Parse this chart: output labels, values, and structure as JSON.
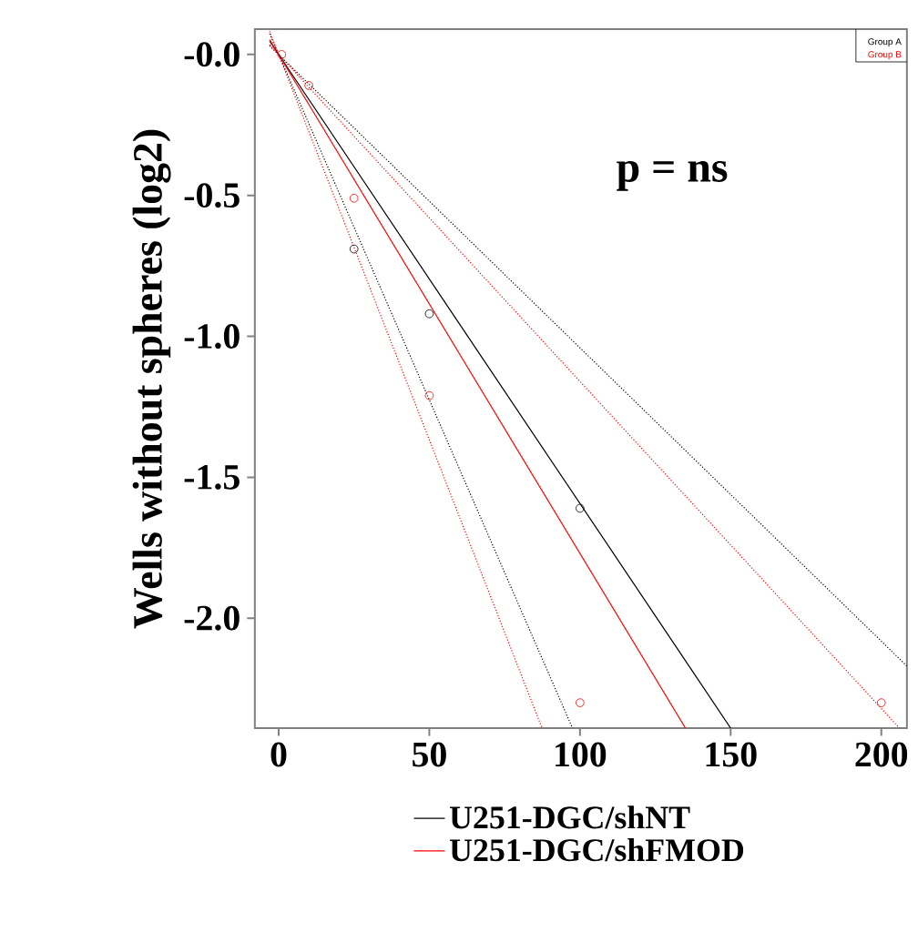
{
  "chart_data": {
    "type": "line",
    "ylabel": "Wells without spheres (log2)",
    "xlim": [
      -7.9,
      208.5
    ],
    "ylim": [
      -2.39,
      0.09
    ],
    "xticks": [
      0,
      50,
      100,
      150,
      200
    ],
    "yticks": [
      {
        "value": 0,
        "label": "-0.0"
      },
      -0.5,
      {
        "value": -1.0,
        "label": "-1.0"
      },
      -1.5,
      {
        "value": -2.0,
        "label": "-2.0"
      }
    ],
    "grid": false,
    "legend": "bottom",
    "annotations": [
      "p = ns",
      "Group A",
      "Group B"
    ],
    "series": [
      {
        "type": "scatter",
        "marker": "circle",
        "color": "#000000",
        "x": [
          25,
          50,
          100
        ],
        "values": [
          -0.69,
          -0.92,
          -1.61
        ]
      },
      {
        "type": "scatter",
        "marker": "circle",
        "color": "#ff0000",
        "x": [
          1,
          10,
          25,
          50,
          100,
          200
        ],
        "values": [
          0.0,
          -0.11,
          -0.51,
          -1.21,
          -2.3,
          -2.3
        ]
      },
      {
        "name": "U251-DGC/shNT",
        "color": "#000000",
        "marker": "none",
        "line_style": "solid",
        "x": [
          -3,
          150
        ],
        "values": [
          0.048,
          -2.39
        ]
      },
      {
        "name": "U251-DGC/shFMOD",
        "color": "#ff0000",
        "marker": "none",
        "line_style": "solid",
        "x": [
          -3,
          135
        ],
        "values": [
          0.053,
          -2.39
        ]
      },
      {
        "color": "#000000",
        "marker": "none",
        "line_style": "dotted",
        "x": [
          -3,
          208.5
        ],
        "values": [
          0.031,
          -2.17
        ]
      },
      {
        "color": "#ff0000",
        "marker": "none",
        "line_style": "dotted",
        "x": [
          -3,
          206
        ],
        "values": [
          0.035,
          -2.39
        ]
      },
      {
        "color": "#000000",
        "marker": "none",
        "line_style": "dotted",
        "x": [
          -3,
          97.5
        ],
        "values": [
          0.074,
          -2.39
        ]
      },
      {
        "color": "#ff0000",
        "marker": "none",
        "line_style": "dotted",
        "x": [
          -3,
          87.4
        ],
        "values": [
          0.082,
          -2.39
        ]
      }
    ]
  }
}
